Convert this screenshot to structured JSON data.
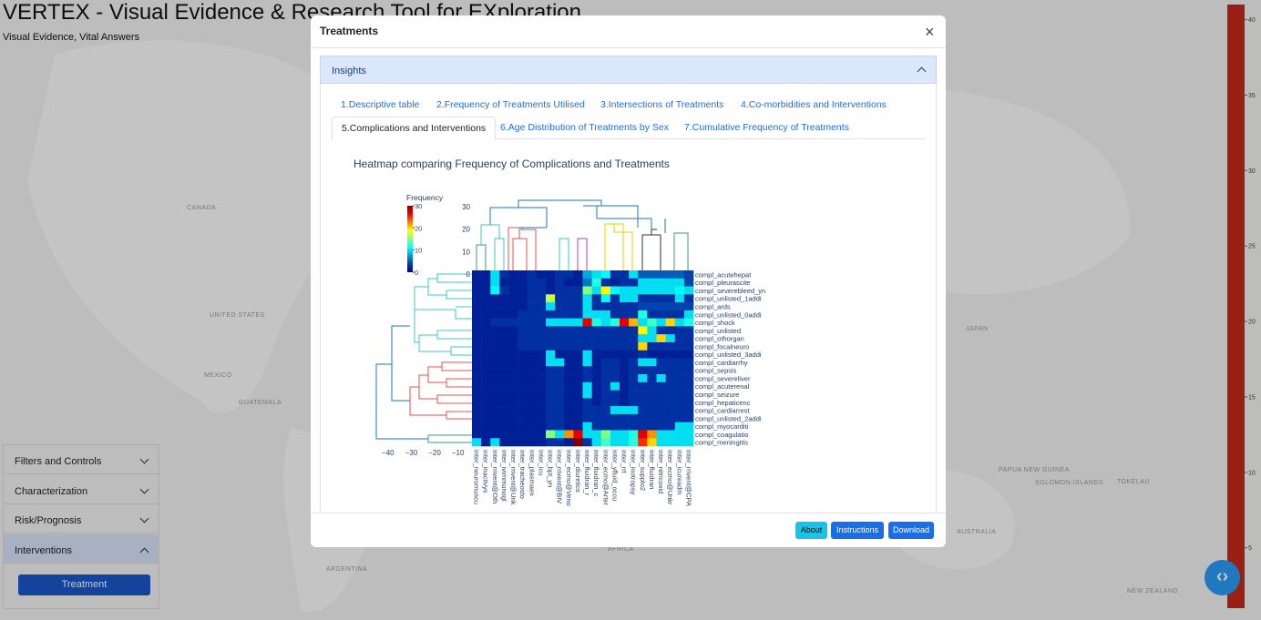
{
  "app": {
    "title": "VERTEX - Visual Evidence & Research Tool for EXploration",
    "subtitle": "Visual Evidence, Vital Answers"
  },
  "map_labels": [
    "CANADA",
    "UNITED STATES",
    "MEXICO",
    "GUATEMALA",
    "JAPAN",
    "PAPUA NEW GUINEA",
    "SOLOMON ISLANDS",
    "TOKELAU",
    "AUSTRALIA",
    "AFRICA",
    "ARGENTINA",
    "NEW ZEALAND"
  ],
  "map_colorbar": {
    "ylim": [
      1,
      41
    ],
    "yticks": [
      5,
      10,
      15,
      20,
      25,
      30,
      35,
      40
    ],
    "color": "#c8281a"
  },
  "sidebar": {
    "items": [
      "Filters and Controls",
      "Characterization",
      "Risk/Prognosis",
      "Interventions"
    ],
    "expanded_index": 3,
    "button": "Treatment"
  },
  "modal": {
    "title": "Treatments",
    "accordion": "Insights",
    "tabs": [
      "1.Descriptive table",
      "2.Frequency of Treatments Utilised",
      "3.Intersections of Treatments",
      "4.Co-morbidities and Interventions",
      "5.Complications and Interventions",
      "6.Age Distribution of Treatments by Sex",
      "7.Cumulative Frequency of Treatments"
    ],
    "active_tab": 4,
    "buttons": [
      "About",
      "Instructions",
      "Download"
    ]
  },
  "chart_data": {
    "type": "heatmap",
    "title": "Heatmap comparing Frequency of Complications and Treatments",
    "colorbar_title": "Frequency",
    "zlim": [
      0,
      30
    ],
    "zticks": [
      0,
      10,
      20,
      30
    ],
    "colorscale": [
      [
        0,
        "#000083"
      ],
      [
        0.125,
        "#003caa"
      ],
      [
        0.375,
        "#05ffff"
      ],
      [
        0.625,
        "#ffff00"
      ],
      [
        0.875,
        "#fa0000"
      ],
      [
        1,
        "#800000"
      ]
    ],
    "x": [
      "inter_neuromuscu",
      "inter_inactivys",
      "inter_rrivent@Oth",
      "inter_ivimmunogl",
      "inter_rrivent@Unk",
      "inter_tracheosto",
      "inter_plasmaex",
      "inter_icu",
      "inter_bpt_yn",
      "inter_rrivent@BIV",
      "inter_ecmo@Veno",
      "inter_diuretics",
      "inter_fluidran_r",
      "inter_fluidran_c",
      "inter_ecmo@Arter",
      "inter_yfluid_occu",
      "inter_rrt",
      "inter_inotropsy",
      "inter_supplo2",
      "inter_fluidran",
      "inter_nitricoxid",
      "inter_ecmo@Unkr",
      "inter_icureadm",
      "inter_rrivent@CPA"
    ],
    "y": [
      "compl_acutehepat",
      "compl_pleurascite",
      "compl_severebleed_yn",
      "compl_unlisted_1addi",
      "compl_ards",
      "compl_unlisted_0addi",
      "compl_shock",
      "compl_unlisted",
      "compl_othorgan",
      "compl_focalneuro",
      "compl_unlisted_3addi",
      "compl_cardiarrhy",
      "compl_sepsis",
      "compl_severeliver",
      "compl_acuterenal",
      "compl_seizure",
      "compl_hepaticenc",
      "compl_cardiarrest",
      "compl_unlisted_2addi",
      "compl_myocarditi",
      "compl_coagulatio",
      "compl_meningitis"
    ],
    "z": [
      [
        2,
        2,
        10,
        3,
        2,
        2,
        3,
        2,
        2,
        3,
        3,
        2,
        8,
        10,
        11,
        3,
        3,
        10,
        5,
        5,
        5,
        5,
        5,
        4
      ],
      [
        2,
        2,
        10,
        2,
        2,
        2,
        3,
        3,
        2,
        3,
        2,
        2,
        6,
        12,
        3,
        2,
        3,
        3,
        10,
        10,
        10,
        10,
        10,
        4
      ],
      [
        2,
        2,
        11,
        3,
        2,
        2,
        3,
        3,
        2,
        3,
        3,
        3,
        15,
        10,
        19,
        11,
        10,
        10,
        10,
        10,
        10,
        10,
        11,
        10
      ],
      [
        2,
        2,
        2,
        2,
        2,
        2,
        3,
        3,
        17,
        3,
        3,
        3,
        10,
        3,
        11,
        3,
        10,
        10,
        3,
        3,
        3,
        3,
        10,
        3
      ],
      [
        2,
        2,
        2,
        2,
        2,
        2,
        3,
        3,
        10,
        3,
        3,
        3,
        10,
        3,
        3,
        3,
        3,
        3,
        4,
        4,
        4,
        4,
        4,
        4
      ],
      [
        2,
        2,
        2,
        2,
        2,
        3,
        3,
        3,
        3,
        3,
        3,
        3,
        10,
        10,
        10,
        3,
        3,
        3,
        12,
        3,
        3,
        3,
        3,
        10
      ],
      [
        2,
        2,
        3,
        3,
        3,
        3,
        3,
        3,
        10,
        10,
        10,
        10,
        27,
        12,
        10,
        12,
        27,
        21,
        10,
        13,
        10,
        20,
        10,
        12
      ],
      [
        2,
        2,
        2,
        2,
        2,
        3,
        3,
        3,
        3,
        3,
        3,
        3,
        3,
        3,
        3,
        3,
        3,
        3,
        19,
        10,
        3,
        3,
        3,
        3
      ],
      [
        2,
        2,
        2,
        2,
        2,
        3,
        3,
        3,
        3,
        3,
        3,
        3,
        3,
        3,
        3,
        3,
        3,
        3,
        10,
        10,
        20,
        10,
        3,
        3
      ],
      [
        2,
        2,
        2,
        2,
        2,
        3,
        3,
        3,
        3,
        3,
        3,
        3,
        3,
        3,
        3,
        3,
        3,
        3,
        20,
        3,
        3,
        3,
        3,
        3
      ],
      [
        2,
        2,
        2,
        2,
        2,
        2,
        2,
        2,
        10,
        2,
        2,
        2,
        10,
        2,
        2,
        2,
        2,
        2,
        3,
        2,
        2,
        2,
        2,
        2
      ],
      [
        2,
        2,
        2,
        2,
        2,
        2,
        2,
        2,
        10,
        10,
        2,
        2,
        10,
        2,
        3,
        3,
        2,
        3,
        10,
        10,
        3,
        3,
        3,
        3
      ],
      [
        2,
        2,
        2,
        2,
        2,
        2,
        2,
        2,
        3,
        3,
        2,
        2,
        3,
        2,
        3,
        3,
        2,
        3,
        3,
        3,
        3,
        3,
        3,
        3
      ],
      [
        2,
        2,
        2,
        2,
        2,
        2,
        2,
        2,
        3,
        3,
        2,
        2,
        3,
        2,
        3,
        3,
        2,
        3,
        10,
        3,
        10,
        3,
        3,
        3
      ],
      [
        2,
        2,
        2,
        2,
        2,
        2,
        2,
        2,
        3,
        3,
        2,
        2,
        10,
        2,
        3,
        10,
        2,
        3,
        3,
        3,
        3,
        3,
        3,
        3
      ],
      [
        2,
        2,
        2,
        2,
        2,
        2,
        2,
        2,
        3,
        3,
        2,
        2,
        10,
        2,
        3,
        3,
        2,
        3,
        3,
        3,
        3,
        3,
        3,
        3
      ],
      [
        2,
        2,
        2,
        2,
        2,
        2,
        2,
        2,
        3,
        3,
        2,
        2,
        3,
        2,
        3,
        3,
        2,
        3,
        3,
        3,
        3,
        3,
        3,
        3
      ],
      [
        2,
        2,
        2,
        2,
        2,
        2,
        2,
        2,
        3,
        3,
        2,
        2,
        3,
        3,
        3,
        10,
        10,
        10,
        3,
        3,
        3,
        3,
        3,
        3
      ],
      [
        2,
        2,
        2,
        2,
        2,
        2,
        2,
        2,
        3,
        3,
        2,
        2,
        3,
        3,
        3,
        3,
        3,
        3,
        3,
        3,
        3,
        3,
        3,
        3
      ],
      [
        2,
        2,
        2,
        2,
        2,
        2,
        2,
        2,
        3,
        3,
        2,
        2,
        10,
        3,
        3,
        3,
        3,
        3,
        3,
        3,
        3,
        3,
        10,
        10
      ],
      [
        2,
        2,
        2,
        2,
        2,
        2,
        2,
        2,
        15,
        10,
        22,
        27,
        10,
        10,
        15,
        10,
        10,
        12,
        27,
        22,
        10,
        10,
        10,
        10
      ],
      [
        10,
        2,
        10,
        2,
        2,
        2,
        2,
        2,
        3,
        3,
        2,
        30,
        3,
        10,
        13,
        10,
        10,
        12,
        25,
        20,
        10,
        10,
        10,
        10
      ]
    ],
    "top_dendrogram": {
      "ylim": [
        0,
        30
      ],
      "yticks": [
        0,
        10,
        20,
        30
      ]
    },
    "left_dendrogram": {
      "xlim": [
        -45,
        -4
      ],
      "xticks": [
        {
          "value": -40,
          "label": "−40"
        },
        {
          "value": -30,
          "label": "−30"
        },
        {
          "value": -20,
          "label": "−20"
        },
        {
          "value": -10,
          "label": "−10"
        }
      ]
    }
  }
}
